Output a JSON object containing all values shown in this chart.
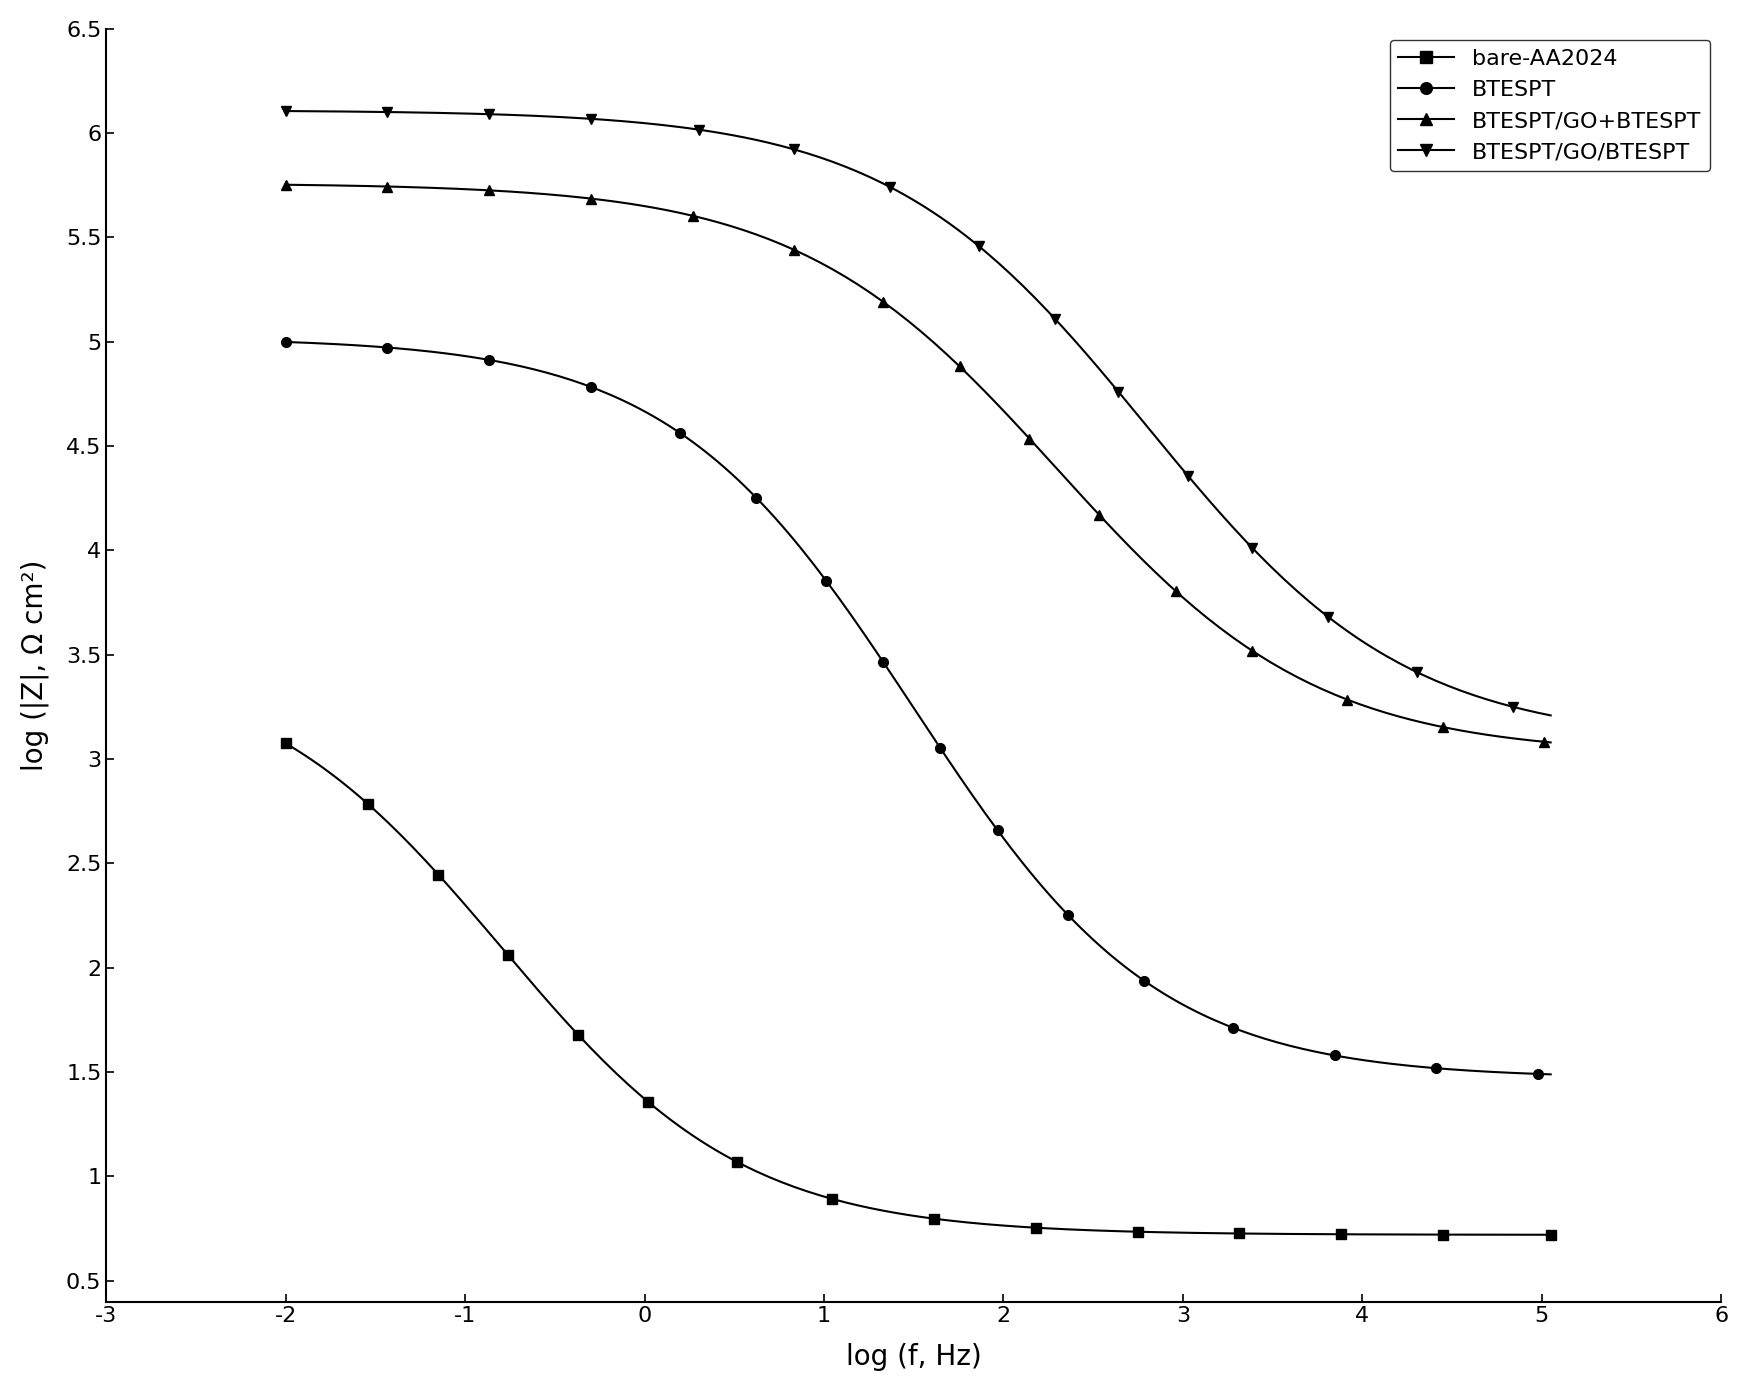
{
  "title": "",
  "xlabel": "log (f, Hz)",
  "ylabel": "log (|Z|, Ω cm²)",
  "xlim": [
    -3,
    6
  ],
  "ylim": [
    0.4,
    6.5
  ],
  "xticks": [
    -3,
    -2,
    -1,
    0,
    1,
    2,
    3,
    4,
    5,
    6
  ],
  "yticks": [
    0.5,
    1.0,
    1.5,
    2.0,
    2.5,
    3.0,
    3.5,
    4.0,
    4.5,
    5.0,
    5.5,
    6.0,
    6.5
  ],
  "series": [
    {
      "label": "bare-AA2024",
      "marker": "s",
      "color": "#000000",
      "x_start": -2.0,
      "x_end": 5.05,
      "plateau_high": 3.48,
      "plateau_low": 0.72,
      "f0": -0.8,
      "alpha": 0.75,
      "n": 0.85
    },
    {
      "label": "BTESPT",
      "marker": "o",
      "color": "#000000",
      "x_start": -2.0,
      "x_end": 5.05,
      "plateau_high": 5.02,
      "plateau_low": 1.47,
      "f0": 1.5,
      "alpha": 0.75,
      "n": 0.85
    },
    {
      "label": "BTESPT/GO+BTESPT",
      "marker": "^",
      "color": "#000000",
      "x_start": -2.0,
      "x_end": 5.05,
      "plateau_high": 5.76,
      "plateau_low": 3.02,
      "f0": 2.3,
      "alpha": 0.75,
      "n": 0.8
    },
    {
      "label": "BTESPT/GO/BTESPT",
      "marker": "v",
      "color": "#000000",
      "x_start": -2.0,
      "x_end": 5.05,
      "plateau_high": 6.11,
      "plateau_low": 3.08,
      "f0": 2.8,
      "alpha": 0.75,
      "n": 0.8
    }
  ],
  "background_color": "#ffffff",
  "legend_loc": "upper right",
  "legend_fontsize": 16,
  "axis_fontsize": 20,
  "tick_fontsize": 16,
  "marker_size": 7,
  "line_width": 1.5,
  "marker_every": 3
}
